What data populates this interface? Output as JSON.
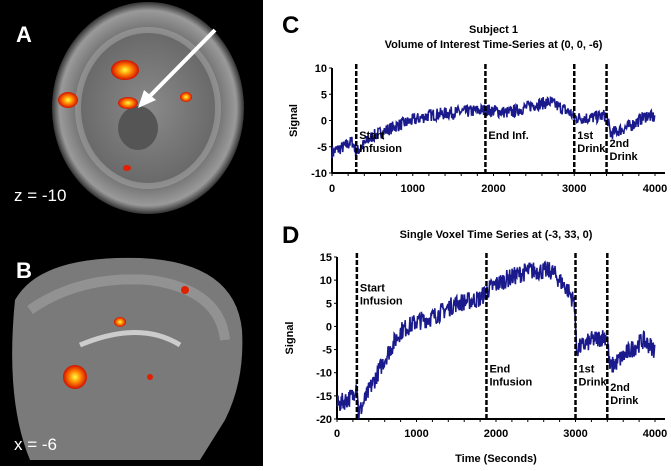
{
  "panels": {
    "a_label": "A",
    "a_coord": "z = -10",
    "b_label": "B",
    "b_coord": "x = -6",
    "c_label": "C",
    "d_label": "D"
  },
  "chart_data": [
    {
      "type": "line",
      "title": "Subject 1",
      "subtitle": "Volume of Interest Time-Series at (0, 0, -6)",
      "xlabel": "",
      "ylabel": "Signal",
      "xlim": [
        0,
        4000
      ],
      "ylim": [
        -10,
        10
      ],
      "xticks": [
        "0",
        "1000",
        "2000",
        "3000",
        "4000"
      ],
      "yticks": [
        "10",
        "5",
        "0",
        "-5",
        "-10"
      ],
      "series_color": "#1a1a8c",
      "keypoints": [
        [
          0,
          -6
        ],
        [
          150,
          -5
        ],
        [
          250,
          -4
        ],
        [
          300,
          -6
        ],
        [
          500,
          -3
        ],
        [
          800,
          -1
        ],
        [
          1000,
          0
        ],
        [
          1200,
          1
        ],
        [
          1500,
          1.5
        ],
        [
          1900,
          2
        ],
        [
          2200,
          1.5
        ],
        [
          2500,
          3
        ],
        [
          2700,
          3.5
        ],
        [
          2950,
          1.5
        ],
        [
          3000,
          0.5
        ],
        [
          3200,
          0.5
        ],
        [
          3400,
          1
        ],
        [
          3450,
          -2.5
        ],
        [
          3700,
          -1
        ],
        [
          3900,
          1
        ],
        [
          4000,
          0.5
        ]
      ],
      "noise": 1.2,
      "events": [
        {
          "x": 300,
          "label": [
            "Start",
            "Infusion"
          ],
          "ly": -3.5
        },
        {
          "x": 1900,
          "label": [
            "End Inf."
          ],
          "ly": -3.5
        },
        {
          "x": 3000,
          "label": [
            "1st",
            "Drink"
          ],
          "ly": -3.5
        },
        {
          "x": 3400,
          "label": [
            "2nd",
            "Drink"
          ],
          "ly": -5
        }
      ]
    },
    {
      "type": "line",
      "title": "Single Voxel Time Series at (-3, 33, 0)",
      "xlabel": "Time (Seconds)",
      "ylabel": "Signal",
      "xlim": [
        0,
        4000
      ],
      "ylim": [
        -20,
        15
      ],
      "xticks": [
        "0",
        "1000",
        "2000",
        "3000",
        "4000"
      ],
      "yticks": [
        "15",
        "10",
        "5",
        "0",
        "-5",
        "-10",
        "-15",
        "-20"
      ],
      "series_color": "#1a1a8c",
      "keypoints": [
        [
          0,
          -17
        ],
        [
          200,
          -15
        ],
        [
          250,
          -12
        ],
        [
          270,
          -19
        ],
        [
          400,
          -14
        ],
        [
          600,
          -7
        ],
        [
          800,
          -1
        ],
        [
          1000,
          1
        ],
        [
          1200,
          2
        ],
        [
          1500,
          5
        ],
        [
          1800,
          6
        ],
        [
          1900,
          8
        ],
        [
          2100,
          10
        ],
        [
          2400,
          12
        ],
        [
          2700,
          12
        ],
        [
          2900,
          8
        ],
        [
          2990,
          5
        ],
        [
          3010,
          -5
        ],
        [
          3200,
          -3
        ],
        [
          3400,
          -2
        ],
        [
          3430,
          -9
        ],
        [
          3700,
          -5
        ],
        [
          3850,
          -3
        ],
        [
          4000,
          -5
        ]
      ],
      "noise": 2,
      "events": [
        {
          "x": 250,
          "label": [
            "Start",
            "Infusion"
          ],
          "ly": 7.5
        },
        {
          "x": 1880,
          "label": [
            "End",
            "Infusion"
          ],
          "ly": -10
        },
        {
          "x": 3000,
          "label": [
            "1st",
            "Drink"
          ],
          "ly": -10
        },
        {
          "x": 3400,
          "label": [
            "2nd",
            "Drink"
          ],
          "ly": -14
        }
      ]
    }
  ]
}
